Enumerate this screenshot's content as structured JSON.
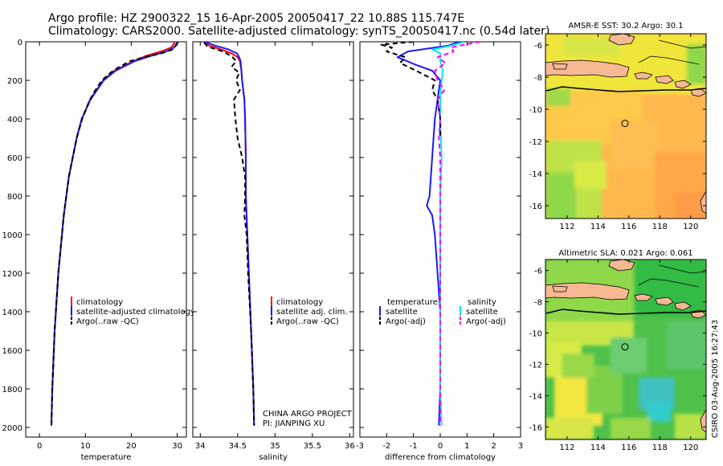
{
  "header": {
    "line1": "Argo profile: HZ 2900322_15 16-Apr-2005 20050417_22 10.88S 115.747E",
    "line2": "Climatology: CARS2000. Satellite-adjusted climatology: synTS_20050417.nc (0.54d later)"
  },
  "side_stamp": "CSIRO 03-Aug-2005 16:27:43",
  "colors": {
    "red": "#ff0000",
    "blue": "#1a1aff",
    "black": "#000000",
    "cyan": "#00e5ff",
    "magenta": "#ff00ff",
    "land": "#f7b994",
    "circle": "#000000"
  },
  "chart_data": [
    {
      "type": "line",
      "panel": "temperature",
      "xlabel": "temperature",
      "ylabel": "",
      "xlim": [
        -3,
        32
      ],
      "ylim": [
        2050,
        0
      ],
      "xticks": [
        0,
        10,
        20,
        30
      ],
      "yticks": [
        0,
        200,
        400,
        600,
        800,
        1000,
        1200,
        1400,
        1600,
        1800,
        2000
      ],
      "legend": {
        "placement": "lower-right",
        "entries": [
          "climatology",
          "satellite-adjusted climatology",
          "Argo(..raw -QC)"
        ]
      },
      "series": [
        {
          "name": "climatology",
          "color": "red",
          "dash": "",
          "y": [
            0,
            10,
            30,
            50,
            75,
            100,
            150,
            200,
            300,
            400,
            500,
            700,
            900,
            1200,
            1500,
            1800,
            1990
          ],
          "x": [
            29.5,
            29.3,
            28.7,
            26.5,
            23.0,
            20.5,
            16.3,
            13.9,
            11.0,
            9.2,
            8.1,
            6.4,
            5.3,
            4.1,
            3.3,
            2.8,
            2.6
          ]
        },
        {
          "name": "satellite-adjusted climatology",
          "color": "blue",
          "dash": "",
          "y": [
            0,
            10,
            30,
            50,
            75,
            100,
            150,
            200,
            300,
            400,
            500,
            700,
            900,
            1200,
            1500,
            1800,
            1990
          ],
          "x": [
            30.2,
            30.0,
            29.3,
            27.6,
            24.0,
            20.8,
            16.6,
            14.0,
            11.1,
            9.2,
            8.1,
            6.4,
            5.3,
            4.1,
            3.3,
            2.8,
            2.6
          ]
        },
        {
          "name": "Argo(..raw -QC)",
          "color": "black",
          "dash": "6,4",
          "y": [
            5,
            20,
            40,
            60,
            80,
            100,
            130,
            160,
            200,
            250,
            300,
            400,
            500,
            700,
            900,
            1200,
            1500,
            1800,
            1990
          ],
          "x": [
            30.0,
            29.6,
            29.0,
            26.6,
            22.7,
            19.8,
            17.4,
            15.5,
            13.6,
            12.2,
            11.0,
            9.3,
            8.1,
            6.4,
            5.3,
            4.1,
            3.3,
            2.8,
            2.6
          ]
        }
      ]
    },
    {
      "type": "line",
      "panel": "salinity",
      "xlabel": "salinity",
      "ylabel": "",
      "xlim": [
        33.9,
        36.05
      ],
      "ylim": [
        2050,
        0
      ],
      "xticks": [
        34,
        34.5,
        35,
        35.5,
        36
      ],
      "legend": {
        "placement": "lower-right",
        "entries": [
          "climatology",
          "satellite adj. clim.",
          "Argo(..raw -QC)"
        ]
      },
      "note": [
        "CHINA ARGO PROJECT",
        "PI: JIANPING XU"
      ],
      "series": [
        {
          "name": "climatology",
          "color": "red",
          "dash": "",
          "y": [
            0,
            20,
            40,
            60,
            80,
            100,
            150,
            200,
            300,
            400,
            600,
            800,
            1000,
            1200,
            1500,
            1800,
            1990
          ],
          "x": [
            34.05,
            34.12,
            34.28,
            34.42,
            34.5,
            34.53,
            34.55,
            34.56,
            34.59,
            34.6,
            34.61,
            34.61,
            34.63,
            34.65,
            34.68,
            34.71,
            34.72
          ]
        },
        {
          "name": "satellite adj. clim.",
          "color": "blue",
          "dash": "",
          "y": [
            0,
            20,
            40,
            60,
            80,
            100,
            150,
            200,
            300,
            400,
            600,
            800,
            1000,
            1200,
            1500,
            1800,
            1990
          ],
          "x": [
            34.06,
            34.2,
            34.38,
            34.49,
            34.52,
            34.54,
            34.55,
            34.56,
            34.59,
            34.6,
            34.61,
            34.61,
            34.63,
            34.65,
            34.68,
            34.71,
            34.72
          ]
        },
        {
          "name": "Argo(..raw -QC)",
          "color": "black",
          "dash": "6,4",
          "y": [
            5,
            25,
            50,
            75,
            100,
            130,
            160,
            200,
            250,
            300,
            400,
            500,
            600,
            700,
            800,
            900,
            1000,
            1200,
            1500,
            1800,
            1990
          ],
          "x": [
            34.05,
            34.1,
            34.3,
            34.42,
            34.48,
            34.42,
            34.52,
            34.48,
            34.53,
            34.45,
            34.47,
            34.5,
            34.56,
            34.6,
            34.6,
            34.59,
            34.62,
            34.64,
            34.68,
            34.71,
            34.72
          ]
        }
      ]
    },
    {
      "type": "line",
      "panel": "difference",
      "xlabel": "difference from climatology",
      "ylabel": "",
      "xlim": [
        -3,
        3
      ],
      "ylim": [
        2050,
        0
      ],
      "xticks": [
        -3,
        -2,
        -1,
        0,
        1,
        2,
        3
      ],
      "legend": {
        "placement": "lower-center",
        "col1_title": "temperature",
        "col2_title": "salinity",
        "col1": [
          "satellite",
          "Argo(-adj)"
        ],
        "col2": [
          "satellite",
          "Argo(-adj)"
        ]
      },
      "series": [
        {
          "name": "temperature satellite",
          "color": "blue",
          "dash": "",
          "y": [
            0,
            20,
            50,
            80,
            120,
            150,
            200,
            300,
            400,
            600,
            800,
            850,
            900,
            1000,
            1200,
            1400,
            1600,
            1800,
            1990
          ],
          "x": [
            0.7,
            0.3,
            -1.2,
            -1.6,
            -0.9,
            -0.3,
            0.0,
            -0.1,
            -0.2,
            -0.3,
            -0.4,
            -0.5,
            -0.3,
            -0.2,
            -0.1,
            0.0,
            0.0,
            0.0,
            -0.05
          ]
        },
        {
          "name": "salinity satellite",
          "color": "cyan",
          "dash": "",
          "y": [
            0,
            20,
            40,
            60,
            100,
            150,
            200,
            300,
            400,
            600,
            800,
            1000,
            1400,
            1800,
            1990
          ],
          "x": [
            0.9,
            0.4,
            -0.3,
            0.0,
            0.0,
            0.1,
            0.05,
            0.0,
            0.0,
            0.05,
            0.0,
            0.0,
            0.0,
            0.0,
            0.05
          ]
        },
        {
          "name": "temperature Argo(-adj)",
          "color": "black",
          "dash": "6,4",
          "y": [
            0,
            15,
            30,
            50,
            80,
            110,
            150,
            200,
            250,
            300,
            400,
            500
          ],
          "x": [
            -1.0,
            -2.2,
            -1.8,
            -2.0,
            -1.3,
            -1.5,
            -0.9,
            -0.2,
            -0.3,
            -0.1,
            0.0,
            0.0
          ]
        },
        {
          "name": "salinity Argo(-adj)",
          "color": "magenta",
          "dash": "6,4",
          "y": [
            0,
            15,
            30,
            50,
            80,
            110,
            150,
            200,
            250,
            300,
            350,
            400,
            500,
            600,
            800,
            1000,
            1400,
            1800,
            1990
          ],
          "x": [
            1.5,
            0.9,
            0.4,
            0.5,
            -0.1,
            0.2,
            -0.2,
            -0.1,
            0.15,
            -0.1,
            -0.05,
            0.0,
            -0.05,
            0.0,
            0.0,
            0.0,
            0.0,
            0.0,
            0.0
          ]
        }
      ]
    },
    {
      "type": "heatmap",
      "panel": "map-sst",
      "title": "AMSR-E SST: 30.2 Argo: 30.1",
      "xlim": [
        110.6,
        121.0
      ],
      "ylim": [
        -16.8,
        -5.3
      ],
      "xticks": [
        112,
        114,
        116,
        118,
        120
      ],
      "yticks": [
        -6,
        -8,
        -10,
        -12,
        -14,
        -16
      ],
      "marker": {
        "lon": 115.75,
        "lat": -10.88
      }
    },
    {
      "type": "heatmap",
      "panel": "map-sla",
      "title": "Altimetric SLA: 0.021 Argo: 0.061",
      "xlim": [
        110.6,
        121.0
      ],
      "ylim": [
        -16.8,
        -5.3
      ],
      "xticks": [
        112,
        114,
        116,
        118,
        120
      ],
      "yticks": [
        -6,
        -8,
        -10,
        -12,
        -14,
        -16
      ],
      "marker": {
        "lon": 115.75,
        "lat": -10.88
      }
    }
  ]
}
